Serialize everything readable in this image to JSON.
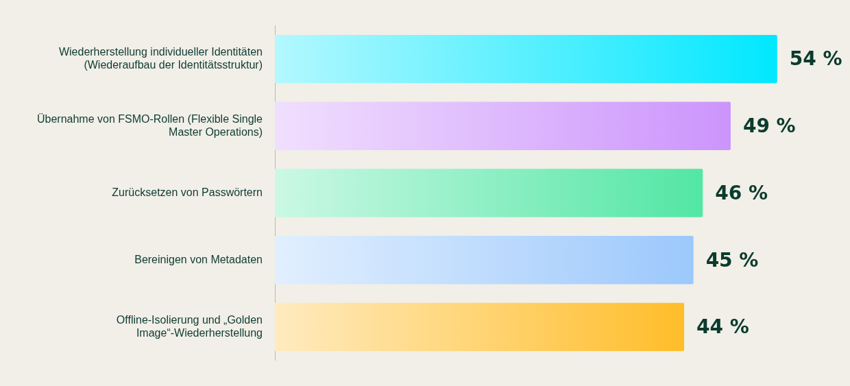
{
  "chart_data": {
    "type": "bar",
    "orientation": "horizontal",
    "categories": [
      "Wiederherstellung individueller Identitäten (Wiederaufbau der Identitätsstruktur)",
      "Übernahme von FSMO-Rollen (Flexible Single Master Operations)",
      "Zurücksetzen von Passwörtern",
      "Bereinigen von Metadaten",
      "Offline-Isolierung und „Golden Image“-Wiederherstellung"
    ],
    "values": [
      54,
      49,
      46,
      45,
      44
    ],
    "colors": [
      "#00e8ff",
      "#cc94fc",
      "#52e6a4",
      "#9cc8fc",
      "#ffbd29"
    ],
    "value_labels": [
      "54 %",
      "49 %",
      "46 %",
      "45 %",
      "44 %"
    ],
    "grid": false,
    "legend": false
  }
}
